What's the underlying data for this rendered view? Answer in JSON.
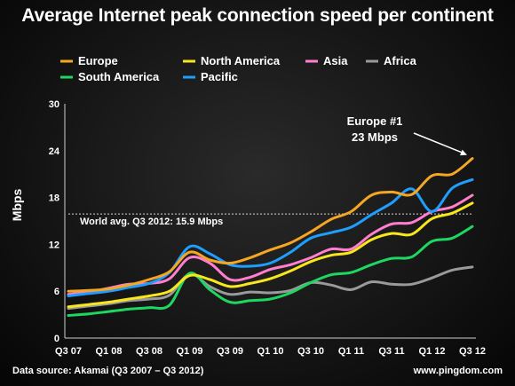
{
  "chart_data": {
    "type": "line",
    "title": "Average Internet peak connection speed per continent",
    "ylabel": "Mbps",
    "ylim": [
      0,
      30
    ],
    "yticks": [
      0,
      6,
      12,
      18,
      24,
      30
    ],
    "x": [
      "Q3 07",
      "Q4 07",
      "Q1 08",
      "Q2 08",
      "Q3 08",
      "Q4 08",
      "Q1 09",
      "Q2 09",
      "Q3 09",
      "Q4 09",
      "Q1 10",
      "Q2 10",
      "Q3 10",
      "Q4 10",
      "Q1 11",
      "Q2 11",
      "Q3 11",
      "Q4 11",
      "Q1 12",
      "Q2 12",
      "Q3 12"
    ],
    "xtick_labels": [
      "Q3 07",
      "Q1 08",
      "Q3 08",
      "Q1 09",
      "Q3 09",
      "Q1 10",
      "Q3 10",
      "Q1 11",
      "Q3 11",
      "Q1 12",
      "Q3 12"
    ],
    "series": [
      {
        "name": "Europe",
        "color": "#f5a623",
        "values": [
          6.0,
          6.1,
          6.3,
          6.8,
          7.5,
          8.5,
          11.0,
          10.0,
          9.6,
          10.3,
          11.3,
          12.2,
          13.6,
          15.2,
          16.2,
          18.3,
          18.7,
          18.4,
          20.8,
          21.0,
          23.0
        ]
      },
      {
        "name": "North America",
        "color": "#f8e71c",
        "values": [
          4.0,
          4.3,
          4.6,
          5.0,
          5.4,
          6.0,
          8.0,
          7.5,
          6.6,
          7.0,
          7.6,
          8.6,
          9.8,
          10.6,
          11.0,
          12.6,
          13.4,
          13.3,
          15.3,
          16.0,
          17.3
        ]
      },
      {
        "name": "Asia",
        "color": "#ff7fce",
        "values": [
          5.6,
          5.9,
          6.4,
          6.9,
          7.0,
          7.6,
          10.3,
          9.6,
          7.5,
          7.8,
          8.8,
          9.4,
          10.3,
          11.4,
          11.4,
          13.3,
          14.6,
          14.8,
          16.2,
          16.8,
          18.3
        ]
      },
      {
        "name": "Africa",
        "color": "#9a9a9a",
        "values": [
          3.8,
          4.1,
          4.4,
          4.8,
          5.0,
          5.5,
          8.2,
          6.6,
          5.6,
          5.9,
          5.8,
          6.1,
          7.1,
          6.8,
          6.2,
          7.2,
          6.9,
          6.9,
          7.7,
          8.7,
          9.1
        ]
      },
      {
        "name": "South America",
        "color": "#1ed760",
        "values": [
          2.9,
          3.1,
          3.4,
          3.7,
          3.9,
          4.2,
          8.3,
          6.2,
          4.6,
          4.8,
          5.0,
          5.8,
          7.1,
          8.1,
          8.4,
          9.4,
          10.2,
          10.4,
          12.4,
          12.8,
          14.3
        ]
      },
      {
        "name": "Pacific",
        "color": "#1e9fff",
        "values": [
          5.4,
          5.7,
          6.0,
          6.5,
          7.0,
          8.4,
          11.7,
          10.8,
          9.4,
          9.2,
          9.6,
          11.0,
          12.8,
          13.5,
          14.2,
          15.8,
          17.3,
          19.1,
          16.2,
          19.2,
          20.3
        ]
      }
    ],
    "reference_line": {
      "value": 15.9,
      "label": "World avg. Q3 2012: 15.9 Mbps"
    },
    "annotation": {
      "line1": "Europe #1",
      "line2": "23 Mbps"
    },
    "grid": false,
    "legend_position": "top"
  },
  "footer": {
    "source": "Data source: Akamai (Q3 2007 – Q3 2012)",
    "website": "www.pingdom.com"
  }
}
